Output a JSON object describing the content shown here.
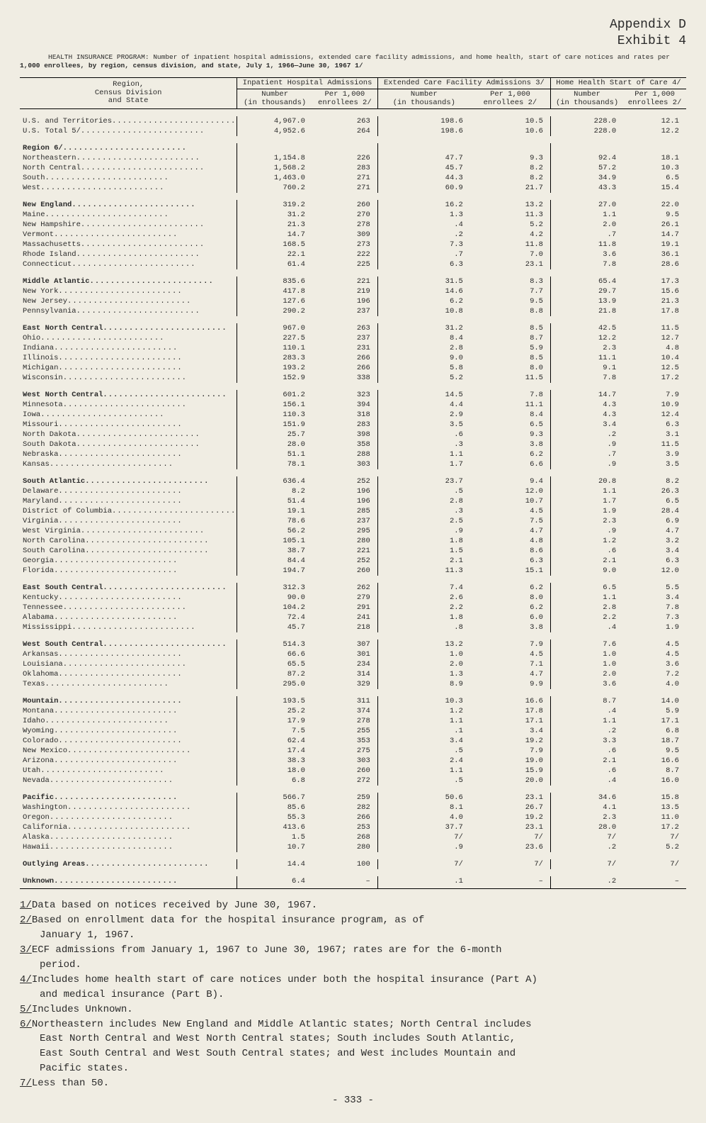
{
  "appendix_line1": "Appendix D",
  "appendix_line2": "Exhibit 4",
  "subtitle_prefix": "HEALTH INSURANCE PROGRAM:",
  "subtitle_rest": "Number of inpatient hospital admissions, extended care facility admissions, and home health, start of care notices and rates per",
  "subtitle_line2": "1,000 enrollees, by region, census division, and state, July 1, 1966—June 30, 1967 1/",
  "header": {
    "region": "Region,\nCensus Division\nand State",
    "groups": [
      "Inpatient Hospital Admissions",
      "Extended Care Facility Admissions 3/",
      "Home Health Start of Care 4/"
    ],
    "sub_number": "Number\n(in thousands)",
    "sub_rate": "Per 1,000\nenrollees 2/"
  },
  "rows": [
    {
      "t": "spacer"
    },
    {
      "t": "data",
      "i": 2,
      "label": "U.S. and Territories",
      "v": [
        "4,967.0",
        "263",
        "198.6",
        "10.5",
        "228.0",
        "12.1"
      ]
    },
    {
      "t": "data",
      "i": 2,
      "label": "U.S. Total 5/",
      "v": [
        "4,952.6",
        "264",
        "198.6",
        "10.6",
        "228.0",
        "12.2"
      ]
    },
    {
      "t": "spacer"
    },
    {
      "t": "section",
      "i": 1,
      "label": "Region 6/",
      "v": [
        "",
        "",
        "",
        "",
        "",
        ""
      ]
    },
    {
      "t": "data",
      "i": 2,
      "label": "Northeastern",
      "v": [
        "1,154.8",
        "226",
        "47.7",
        "9.3",
        "92.4",
        "18.1"
      ]
    },
    {
      "t": "data",
      "i": 2,
      "label": "North Central",
      "v": [
        "1,568.2",
        "283",
        "45.7",
        "8.2",
        "57.2",
        "10.3"
      ]
    },
    {
      "t": "data",
      "i": 2,
      "label": "South",
      "v": [
        "1,463.0",
        "271",
        "44.3",
        "8.2",
        "34.9",
        "6.5"
      ]
    },
    {
      "t": "data",
      "i": 2,
      "label": "West",
      "v": [
        "760.2",
        "271",
        "60.9",
        "21.7",
        "43.3",
        "15.4"
      ]
    },
    {
      "t": "spacer"
    },
    {
      "t": "section",
      "i": 1,
      "label": "New England",
      "v": [
        "319.2",
        "260",
        "16.2",
        "13.2",
        "27.0",
        "22.0"
      ]
    },
    {
      "t": "data",
      "i": 2,
      "label": "Maine",
      "v": [
        "31.2",
        "270",
        "1.3",
        "11.3",
        "1.1",
        "9.5"
      ]
    },
    {
      "t": "data",
      "i": 2,
      "label": "New Hampshire",
      "v": [
        "21.3",
        "278",
        ".4",
        "5.2",
        "2.0",
        "26.1"
      ]
    },
    {
      "t": "data",
      "i": 2,
      "label": "Vermont",
      "v": [
        "14.7",
        "309",
        ".2",
        "4.2",
        ".7",
        "14.7"
      ]
    },
    {
      "t": "data",
      "i": 2,
      "label": "Massachusetts",
      "v": [
        "168.5",
        "273",
        "7.3",
        "11.8",
        "11.8",
        "19.1"
      ]
    },
    {
      "t": "data",
      "i": 2,
      "label": "Rhode Island",
      "v": [
        "22.1",
        "222",
        ".7",
        "7.0",
        "3.6",
        "36.1"
      ]
    },
    {
      "t": "data",
      "i": 2,
      "label": "Connecticut",
      "v": [
        "61.4",
        "225",
        "6.3",
        "23.1",
        "7.8",
        "28.6"
      ]
    },
    {
      "t": "spacer"
    },
    {
      "t": "section",
      "i": 1,
      "label": "Middle Atlantic",
      "v": [
        "835.6",
        "221",
        "31.5",
        "8.3",
        "65.4",
        "17.3"
      ]
    },
    {
      "t": "data",
      "i": 2,
      "label": "New York",
      "v": [
        "417.8",
        "219",
        "14.6",
        "7.7",
        "29.7",
        "15.6"
      ]
    },
    {
      "t": "data",
      "i": 2,
      "label": "New Jersey",
      "v": [
        "127.6",
        "196",
        "6.2",
        "9.5",
        "13.9",
        "21.3"
      ]
    },
    {
      "t": "data",
      "i": 2,
      "label": "Pennsylvania",
      "v": [
        "290.2",
        "237",
        "10.8",
        "8.8",
        "21.8",
        "17.8"
      ]
    },
    {
      "t": "spacer"
    },
    {
      "t": "section",
      "i": 1,
      "label": "East North Central",
      "v": [
        "967.0",
        "263",
        "31.2",
        "8.5",
        "42.5",
        "11.5"
      ]
    },
    {
      "t": "data",
      "i": 2,
      "label": "Ohio",
      "v": [
        "227.5",
        "237",
        "8.4",
        "8.7",
        "12.2",
        "12.7"
      ]
    },
    {
      "t": "data",
      "i": 2,
      "label": "Indiana",
      "v": [
        "110.1",
        "231",
        "2.8",
        "5.9",
        "2.3",
        "4.8"
      ]
    },
    {
      "t": "data",
      "i": 2,
      "label": "Illinois",
      "v": [
        "283.3",
        "266",
        "9.0",
        "8.5",
        "11.1",
        "10.4"
      ]
    },
    {
      "t": "data",
      "i": 2,
      "label": "Michigan",
      "v": [
        "193.2",
        "266",
        "5.8",
        "8.0",
        "9.1",
        "12.5"
      ]
    },
    {
      "t": "data",
      "i": 2,
      "label": "Wisconsin",
      "v": [
        "152.9",
        "338",
        "5.2",
        "11.5",
        "7.8",
        "17.2"
      ]
    },
    {
      "t": "spacer"
    },
    {
      "t": "section",
      "i": 1,
      "label": "West North Central",
      "v": [
        "601.2",
        "323",
        "14.5",
        "7.8",
        "14.7",
        "7.9"
      ]
    },
    {
      "t": "data",
      "i": 2,
      "label": "Minnesota",
      "v": [
        "156.1",
        "394",
        "4.4",
        "11.1",
        "4.3",
        "10.9"
      ]
    },
    {
      "t": "data",
      "i": 2,
      "label": "Iowa",
      "v": [
        "110.3",
        "318",
        "2.9",
        "8.4",
        "4.3",
        "12.4"
      ]
    },
    {
      "t": "data",
      "i": 2,
      "label": "Missouri",
      "v": [
        "151.9",
        "283",
        "3.5",
        "6.5",
        "3.4",
        "6.3"
      ]
    },
    {
      "t": "data",
      "i": 2,
      "label": "North Dakota",
      "v": [
        "25.7",
        "398",
        ".6",
        "9.3",
        ".2",
        "3.1"
      ]
    },
    {
      "t": "data",
      "i": 2,
      "label": "South Dakota",
      "v": [
        "28.0",
        "358",
        ".3",
        "3.8",
        ".9",
        "11.5"
      ]
    },
    {
      "t": "data",
      "i": 2,
      "label": "Nebraska",
      "v": [
        "51.1",
        "288",
        "1.1",
        "6.2",
        ".7",
        "3.9"
      ]
    },
    {
      "t": "data",
      "i": 2,
      "label": "Kansas",
      "v": [
        "78.1",
        "303",
        "1.7",
        "6.6",
        ".9",
        "3.5"
      ]
    },
    {
      "t": "spacer"
    },
    {
      "t": "section",
      "i": 1,
      "label": "South Atlantic",
      "v": [
        "636.4",
        "252",
        "23.7",
        "9.4",
        "20.8",
        "8.2"
      ]
    },
    {
      "t": "data",
      "i": 2,
      "label": "Delaware",
      "v": [
        "8.2",
        "196",
        ".5",
        "12.0",
        "1.1",
        "26.3"
      ]
    },
    {
      "t": "data",
      "i": 2,
      "label": "Maryland",
      "v": [
        "51.4",
        "196",
        "2.8",
        "10.7",
        "1.7",
        "6.5"
      ]
    },
    {
      "t": "data",
      "i": 2,
      "label": "District of Columbia",
      "v": [
        "19.1",
        "285",
        ".3",
        "4.5",
        "1.9",
        "28.4"
      ]
    },
    {
      "t": "data",
      "i": 2,
      "label": "Virginia",
      "v": [
        "78.6",
        "237",
        "2.5",
        "7.5",
        "2.3",
        "6.9"
      ]
    },
    {
      "t": "data",
      "i": 2,
      "label": "West Virginia",
      "v": [
        "56.2",
        "295",
        ".9",
        "4.7",
        ".9",
        "4.7"
      ]
    },
    {
      "t": "data",
      "i": 2,
      "label": "North Carolina",
      "v": [
        "105.1",
        "280",
        "1.8",
        "4.8",
        "1.2",
        "3.2"
      ]
    },
    {
      "t": "data",
      "i": 2,
      "label": "South Carolina",
      "v": [
        "38.7",
        "221",
        "1.5",
        "8.6",
        ".6",
        "3.4"
      ]
    },
    {
      "t": "data",
      "i": 2,
      "label": "Georgia",
      "v": [
        "84.4",
        "252",
        "2.1",
        "6.3",
        "2.1",
        "6.3"
      ]
    },
    {
      "t": "data",
      "i": 2,
      "label": "Florida",
      "v": [
        "194.7",
        "260",
        "11.3",
        "15.1",
        "9.0",
        "12.0"
      ]
    },
    {
      "t": "spacer"
    },
    {
      "t": "section",
      "i": 1,
      "label": "East South Central",
      "v": [
        "312.3",
        "262",
        "7.4",
        "6.2",
        "6.5",
        "5.5"
      ]
    },
    {
      "t": "data",
      "i": 2,
      "label": "Kentucky",
      "v": [
        "90.0",
        "279",
        "2.6",
        "8.0",
        "1.1",
        "3.4"
      ]
    },
    {
      "t": "data",
      "i": 2,
      "label": "Tennessee",
      "v": [
        "104.2",
        "291",
        "2.2",
        "6.2",
        "2.8",
        "7.8"
      ]
    },
    {
      "t": "data",
      "i": 2,
      "label": "Alabama",
      "v": [
        "72.4",
        "241",
        "1.8",
        "6.0",
        "2.2",
        "7.3"
      ]
    },
    {
      "t": "data",
      "i": 2,
      "label": "Mississippi",
      "v": [
        "45.7",
        "218",
        ".8",
        "3.8",
        ".4",
        "1.9"
      ]
    },
    {
      "t": "spacer"
    },
    {
      "t": "section",
      "i": 1,
      "label": "West South Central",
      "v": [
        "514.3",
        "307",
        "13.2",
        "7.9",
        "7.6",
        "4.5"
      ]
    },
    {
      "t": "data",
      "i": 2,
      "label": "Arkansas",
      "v": [
        "66.6",
        "301",
        "1.0",
        "4.5",
        "1.0",
        "4.5"
      ]
    },
    {
      "t": "data",
      "i": 2,
      "label": "Louisiana",
      "v": [
        "65.5",
        "234",
        "2.0",
        "7.1",
        "1.0",
        "3.6"
      ]
    },
    {
      "t": "data",
      "i": 2,
      "label": "Oklahoma",
      "v": [
        "87.2",
        "314",
        "1.3",
        "4.7",
        "2.0",
        "7.2"
      ]
    },
    {
      "t": "data",
      "i": 2,
      "label": "Texas",
      "v": [
        "295.0",
        "329",
        "8.9",
        "9.9",
        "3.6",
        "4.0"
      ]
    },
    {
      "t": "spacer"
    },
    {
      "t": "section",
      "i": 1,
      "label": "Mountain",
      "v": [
        "193.5",
        "311",
        "10.3",
        "16.6",
        "8.7",
        "14.0"
      ]
    },
    {
      "t": "data",
      "i": 2,
      "label": "Montana",
      "v": [
        "25.2",
        "374",
        "1.2",
        "17.8",
        ".4",
        "5.9"
      ]
    },
    {
      "t": "data",
      "i": 2,
      "label": "Idaho",
      "v": [
        "17.9",
        "278",
        "1.1",
        "17.1",
        "1.1",
        "17.1"
      ]
    },
    {
      "t": "data",
      "i": 2,
      "label": "Wyoming",
      "v": [
        "7.5",
        "255",
        ".1",
        "3.4",
        ".2",
        "6.8"
      ]
    },
    {
      "t": "data",
      "i": 2,
      "label": "Colorado",
      "v": [
        "62.4",
        "353",
        "3.4",
        "19.2",
        "3.3",
        "18.7"
      ]
    },
    {
      "t": "data",
      "i": 2,
      "label": "New Mexico",
      "v": [
        "17.4",
        "275",
        ".5",
        "7.9",
        ".6",
        "9.5"
      ]
    },
    {
      "t": "data",
      "i": 2,
      "label": "Arizona",
      "v": [
        "38.3",
        "303",
        "2.4",
        "19.0",
        "2.1",
        "16.6"
      ]
    },
    {
      "t": "data",
      "i": 2,
      "label": "Utah",
      "v": [
        "18.0",
        "260",
        "1.1",
        "15.9",
        ".6",
        "8.7"
      ]
    },
    {
      "t": "data",
      "i": 2,
      "label": "Nevada",
      "v": [
        "6.8",
        "272",
        ".5",
        "20.0",
        ".4",
        "16.0"
      ]
    },
    {
      "t": "spacer"
    },
    {
      "t": "section",
      "i": 1,
      "label": "Pacific",
      "v": [
        "566.7",
        "259",
        "50.6",
        "23.1",
        "34.6",
        "15.8"
      ]
    },
    {
      "t": "data",
      "i": 2,
      "label": "Washington",
      "v": [
        "85.6",
        "282",
        "8.1",
        "26.7",
        "4.1",
        "13.5"
      ]
    },
    {
      "t": "data",
      "i": 2,
      "label": "Oregon",
      "v": [
        "55.3",
        "266",
        "4.0",
        "19.2",
        "2.3",
        "11.0"
      ]
    },
    {
      "t": "data",
      "i": 2,
      "label": "California",
      "v": [
        "413.6",
        "253",
        "37.7",
        "23.1",
        "28.0",
        "17.2"
      ]
    },
    {
      "t": "data",
      "i": 2,
      "label": "Alaska",
      "v": [
        "1.5",
        "268",
        "7/",
        "7/",
        "7/",
        "7/"
      ]
    },
    {
      "t": "data",
      "i": 2,
      "label": "Hawaii",
      "v": [
        "10.7",
        "280",
        ".9",
        "23.6",
        ".2",
        "5.2"
      ]
    },
    {
      "t": "spacer"
    },
    {
      "t": "section",
      "i": 1,
      "label": "Outlying Areas",
      "v": [
        "14.4",
        "100",
        "7/",
        "7/",
        "7/",
        "7/"
      ]
    },
    {
      "t": "spacer"
    },
    {
      "t": "section",
      "i": 1,
      "label": "Unknown",
      "v": [
        "6.4",
        "–",
        ".1",
        "–",
        ".2",
        "–"
      ],
      "last": true
    }
  ],
  "footnotes": [
    {
      "n": "1/",
      "t": "Data based on notices received by June 30, 1967."
    },
    {
      "n": "2/",
      "t": "Based on            enrollment data for the hospital insurance program, as of"
    },
    {
      "n": "",
      "t": "January 1, 1967.",
      "indent": true
    },
    {
      "n": "3/",
      "t": "ECF admissions from January 1, 1967 to June 30, 1967; rates are for the 6-month"
    },
    {
      "n": "",
      "t": "period.",
      "indent": true
    },
    {
      "n": "4/",
      "t": "Includes home health start of care notices under both the hospital insurance (Part A)"
    },
    {
      "n": "",
      "t": "and medical insurance (Part B).",
      "indent": true
    },
    {
      "n": "5/",
      "t": "Includes Unknown."
    },
    {
      "n": "6/",
      "t": "Northeastern includes New England and Middle Atlantic states; North Central includes"
    },
    {
      "n": "",
      "t": "East North Central and West North Central states; South includes South Atlantic,",
      "indent": true
    },
    {
      "n": "",
      "t": "East South Central and West South Central states; and West includes Mountain and",
      "indent": true
    },
    {
      "n": "",
      "t": "Pacific states.",
      "indent": true
    },
    {
      "n": "7/",
      "t": "Less than 50."
    }
  ],
  "page_number": "- 333 -"
}
